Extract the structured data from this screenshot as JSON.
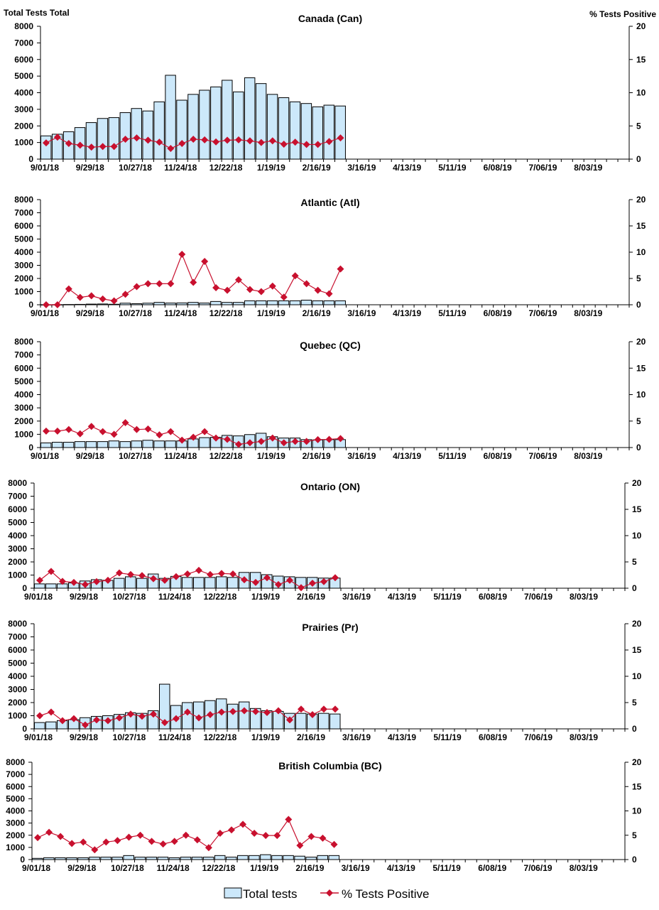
{
  "header": {
    "left_axis_title": "Total Tests Total",
    "right_axis_title": "% Tests Positive"
  },
  "legend": {
    "bars": "Total tests",
    "line": "% Tests Positive"
  },
  "colors": {
    "bar_fill": "#cce8fa",
    "bar_stroke": "#000000",
    "line": "#c8102e"
  },
  "chart_data": [
    {
      "type": "bar+line",
      "title": "Canada (Can)",
      "x_tick_labels": [
        "9/01/18",
        "9/29/18",
        "10/27/18",
        "11/24/18",
        "12/22/18",
        "1/19/19",
        "2/16/19",
        "3/16/19",
        "4/13/19",
        "5/11/19",
        "6/08/19",
        "7/06/19",
        "8/03/19"
      ],
      "y_left": {
        "label": "Total Tests",
        "range": [
          0,
          8000
        ],
        "ticks": [
          0,
          1000,
          2000,
          3000,
          4000,
          5000,
          6000,
          7000,
          8000
        ]
      },
      "y_right": {
        "label": "% Tests Positive",
        "range": [
          0,
          20
        ],
        "ticks": [
          0,
          5,
          10,
          15,
          20
        ]
      },
      "series": [
        {
          "name": "Total tests",
          "values": [
            1400,
            1500,
            1650,
            1900,
            2200,
            2450,
            2500,
            2800,
            3050,
            2900,
            3450,
            5050,
            3550,
            3900,
            4150,
            4350,
            4750,
            4050,
            4900,
            4550,
            3900,
            3700,
            3450,
            3350,
            3150,
            3250,
            3200
          ]
        },
        {
          "name": "% Tests Positive",
          "values": [
            2.45,
            3.3,
            2.35,
            2.1,
            1.8,
            1.9,
            1.9,
            3.0,
            3.2,
            2.85,
            2.55,
            1.6,
            2.35,
            3.0,
            2.9,
            2.6,
            2.85,
            2.9,
            2.75,
            2.5,
            2.75,
            2.25,
            2.55,
            2.2,
            2.2,
            2.65,
            3.2
          ]
        }
      ]
    },
    {
      "type": "bar+line",
      "title": "Atlantic (Atl)",
      "x_tick_labels": [
        "9/01/18",
        "9/29/18",
        "10/27/18",
        "11/24/18",
        "12/22/18",
        "1/19/19",
        "2/16/19",
        "3/16/19",
        "4/13/19",
        "5/11/19",
        "6/08/19",
        "7/06/19",
        "8/03/19"
      ],
      "y_left": {
        "range": [
          0,
          8000
        ],
        "ticks": [
          0,
          1000,
          2000,
          3000,
          4000,
          5000,
          6000,
          7000,
          8000
        ]
      },
      "y_right": {
        "range": [
          0,
          20
        ],
        "ticks": [
          0,
          5,
          10,
          15,
          20
        ]
      },
      "series": [
        {
          "name": "Total tests",
          "values": [
            5,
            10,
            20,
            30,
            50,
            60,
            40,
            120,
            80,
            120,
            180,
            130,
            140,
            180,
            130,
            250,
            180,
            180,
            300,
            300,
            300,
            300,
            300,
            350,
            300,
            300,
            300
          ]
        },
        {
          "name": "% Tests Positive",
          "values": [
            0,
            0,
            3.0,
            1.4,
            1.7,
            1.1,
            0.75,
            2.0,
            3.45,
            4.0,
            4.0,
            4.0,
            9.6,
            4.25,
            8.25,
            3.25,
            2.75,
            4.75,
            2.9,
            2.5,
            3.55,
            1.45,
            5.5,
            4.0,
            2.75,
            2.1,
            6.8
          ]
        }
      ]
    },
    {
      "type": "bar+line",
      "title": "Quebec (QC)",
      "x_tick_labels": [
        "9/01/18",
        "9/29/18",
        "10/27/18",
        "11/24/18",
        "12/22/18",
        "1/19/19",
        "2/16/19",
        "3/16/19",
        "4/13/19",
        "5/11/19",
        "6/08/19",
        "7/06/19",
        "8/03/19"
      ],
      "y_left": {
        "range": [
          0,
          8000
        ],
        "ticks": [
          0,
          1000,
          2000,
          3000,
          4000,
          5000,
          6000,
          7000,
          8000
        ]
      },
      "y_right": {
        "range": [
          0,
          20
        ],
        "ticks": [
          0,
          5,
          10,
          15,
          20
        ]
      },
      "series": [
        {
          "name": "Total tests",
          "values": [
            350,
            400,
            400,
            450,
            450,
            450,
            500,
            450,
            500,
            550,
            500,
            500,
            500,
            650,
            750,
            780,
            920,
            880,
            980,
            1080,
            820,
            720,
            720,
            600,
            580,
            600,
            600
          ]
        },
        {
          "name": "% Tests Positive",
          "values": [
            3.1,
            3.1,
            3.4,
            2.6,
            4.0,
            3.0,
            2.5,
            4.7,
            3.4,
            3.5,
            2.4,
            3.0,
            1.4,
            1.95,
            3.0,
            1.8,
            1.55,
            0.6,
            0.9,
            1.15,
            1.8,
            0.9,
            1.15,
            1.15,
            1.5,
            1.55,
            1.7
          ]
        }
      ]
    },
    {
      "type": "bar+line",
      "title": "Ontario (ON)",
      "x_tick_labels": [
        "9/01/18",
        "9/29/18",
        "10/27/18",
        "11/24/18",
        "12/22/18",
        "1/19/19",
        "2/16/19",
        "3/16/19",
        "4/13/19",
        "5/11/19",
        "6/08/19",
        "7/06/19",
        "8/03/19"
      ],
      "y_left": {
        "range": [
          0,
          8000
        ],
        "ticks": [
          0,
          1000,
          2000,
          3000,
          4000,
          5000,
          6000,
          7000,
          8000
        ]
      },
      "y_right": {
        "range": [
          0,
          20
        ],
        "ticks": [
          0,
          5,
          10,
          15,
          20
        ]
      },
      "series": [
        {
          "name": "Total tests",
          "values": [
            330,
            330,
            330,
            400,
            550,
            650,
            600,
            750,
            870,
            750,
            1080,
            750,
            900,
            820,
            820,
            820,
            870,
            820,
            1200,
            1200,
            1030,
            920,
            870,
            820,
            820,
            770,
            770
          ]
        },
        {
          "name": "% Tests Positive",
          "values": [
            1.5,
            3.2,
            1.3,
            1.1,
            0.7,
            1.25,
            1.5,
            2.9,
            2.6,
            2.4,
            1.8,
            1.5,
            2.2,
            2.7,
            3.4,
            2.6,
            2.8,
            2.7,
            1.6,
            1.1,
            2.0,
            0.7,
            1.5,
            0.1,
            0.95,
            1.25,
            2.0
          ]
        }
      ]
    },
    {
      "type": "bar+line",
      "title": "Prairies (Pr)",
      "x_tick_labels": [
        "9/01/18",
        "9/29/18",
        "10/27/18",
        "11/24/18",
        "12/22/18",
        "1/19/19",
        "2/16/19",
        "3/16/19",
        "4/13/19",
        "5/11/19",
        "6/08/19",
        "7/06/19",
        "8/03/19"
      ],
      "y_left": {
        "range": [
          0,
          8000
        ],
        "ticks": [
          0,
          1000,
          2000,
          3000,
          4000,
          5000,
          6000,
          7000,
          8000
        ]
      },
      "y_right": {
        "range": [
          0,
          20
        ],
        "ticks": [
          0,
          5,
          10,
          15,
          20
        ]
      },
      "series": [
        {
          "name": "Total tests",
          "values": [
            480,
            530,
            630,
            700,
            850,
            950,
            1000,
            1100,
            1230,
            1180,
            1380,
            3400,
            1780,
            2000,
            2050,
            2150,
            2280,
            1880,
            2050,
            1550,
            1380,
            1330,
            1180,
            1180,
            1130,
            1180,
            1130
          ]
        },
        {
          "name": "% Tests Positive",
          "values": [
            2.5,
            3.2,
            1.55,
            1.95,
            0.75,
            1.7,
            1.55,
            2.1,
            2.8,
            2.4,
            2.8,
            1.2,
            1.95,
            3.2,
            2.1,
            2.7,
            3.2,
            3.3,
            3.45,
            3.3,
            3.1,
            3.45,
            1.7,
            3.75,
            2.7,
            3.75,
            3.75
          ]
        }
      ]
    },
    {
      "type": "bar+line",
      "title": "British Columbia (BC)",
      "x_tick_labels": [
        "9/01/18",
        "9/29/18",
        "10/27/18",
        "11/24/18",
        "12/22/18",
        "1/19/19",
        "2/16/19",
        "3/16/19",
        "4/13/19",
        "5/11/19",
        "6/08/19",
        "7/06/19",
        "8/03/19"
      ],
      "y_left": {
        "range": [
          0,
          8000
        ],
        "ticks": [
          0,
          1000,
          2000,
          3000,
          4000,
          5000,
          6000,
          7000,
          8000
        ]
      },
      "y_right": {
        "range": [
          0,
          20
        ],
        "ticks": [
          0,
          5,
          10,
          15,
          20
        ]
      },
      "series": [
        {
          "name": "Total tests",
          "values": [
            100,
            150,
            150,
            150,
            150,
            200,
            200,
            200,
            330,
            200,
            200,
            200,
            150,
            200,
            200,
            200,
            330,
            200,
            330,
            330,
            400,
            330,
            330,
            280,
            200,
            330,
            330
          ]
        },
        {
          "name": "% Tests Positive",
          "values": [
            4.5,
            5.6,
            4.75,
            3.3,
            3.6,
            2.0,
            3.6,
            3.9,
            4.6,
            5.0,
            3.75,
            3.2,
            3.75,
            5.0,
            4.05,
            2.45,
            5.4,
            6.1,
            7.25,
            5.4,
            4.95,
            4.95,
            8.25,
            2.9,
            4.75,
            4.4,
            3.1
          ]
        }
      ]
    }
  ]
}
